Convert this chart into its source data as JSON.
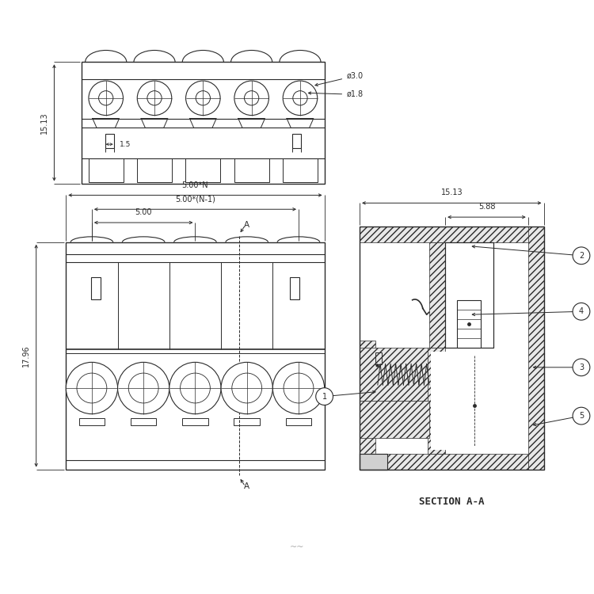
{
  "bg_color": "#ffffff",
  "line_color": "#2a2a2a",
  "dim_color": "#2a2a2a",
  "title_section": "SECTION A-A",
  "dim_top_view": {
    "width_label": "15.13",
    "diameter1": "ø3.0",
    "diameter2": "ø1.8",
    "spacing_label": "1.5",
    "num_screws": 5
  },
  "dim_front_view": {
    "total_width": "5.00*N",
    "pitch_n1": "5.00*(N-1)",
    "pitch": "5.00",
    "height_label": "17.96"
  },
  "dim_section": {
    "total_width": "15.13",
    "inner_width": "5.88"
  },
  "section_labels": [
    "1",
    "2",
    "3",
    "4",
    "5"
  ]
}
